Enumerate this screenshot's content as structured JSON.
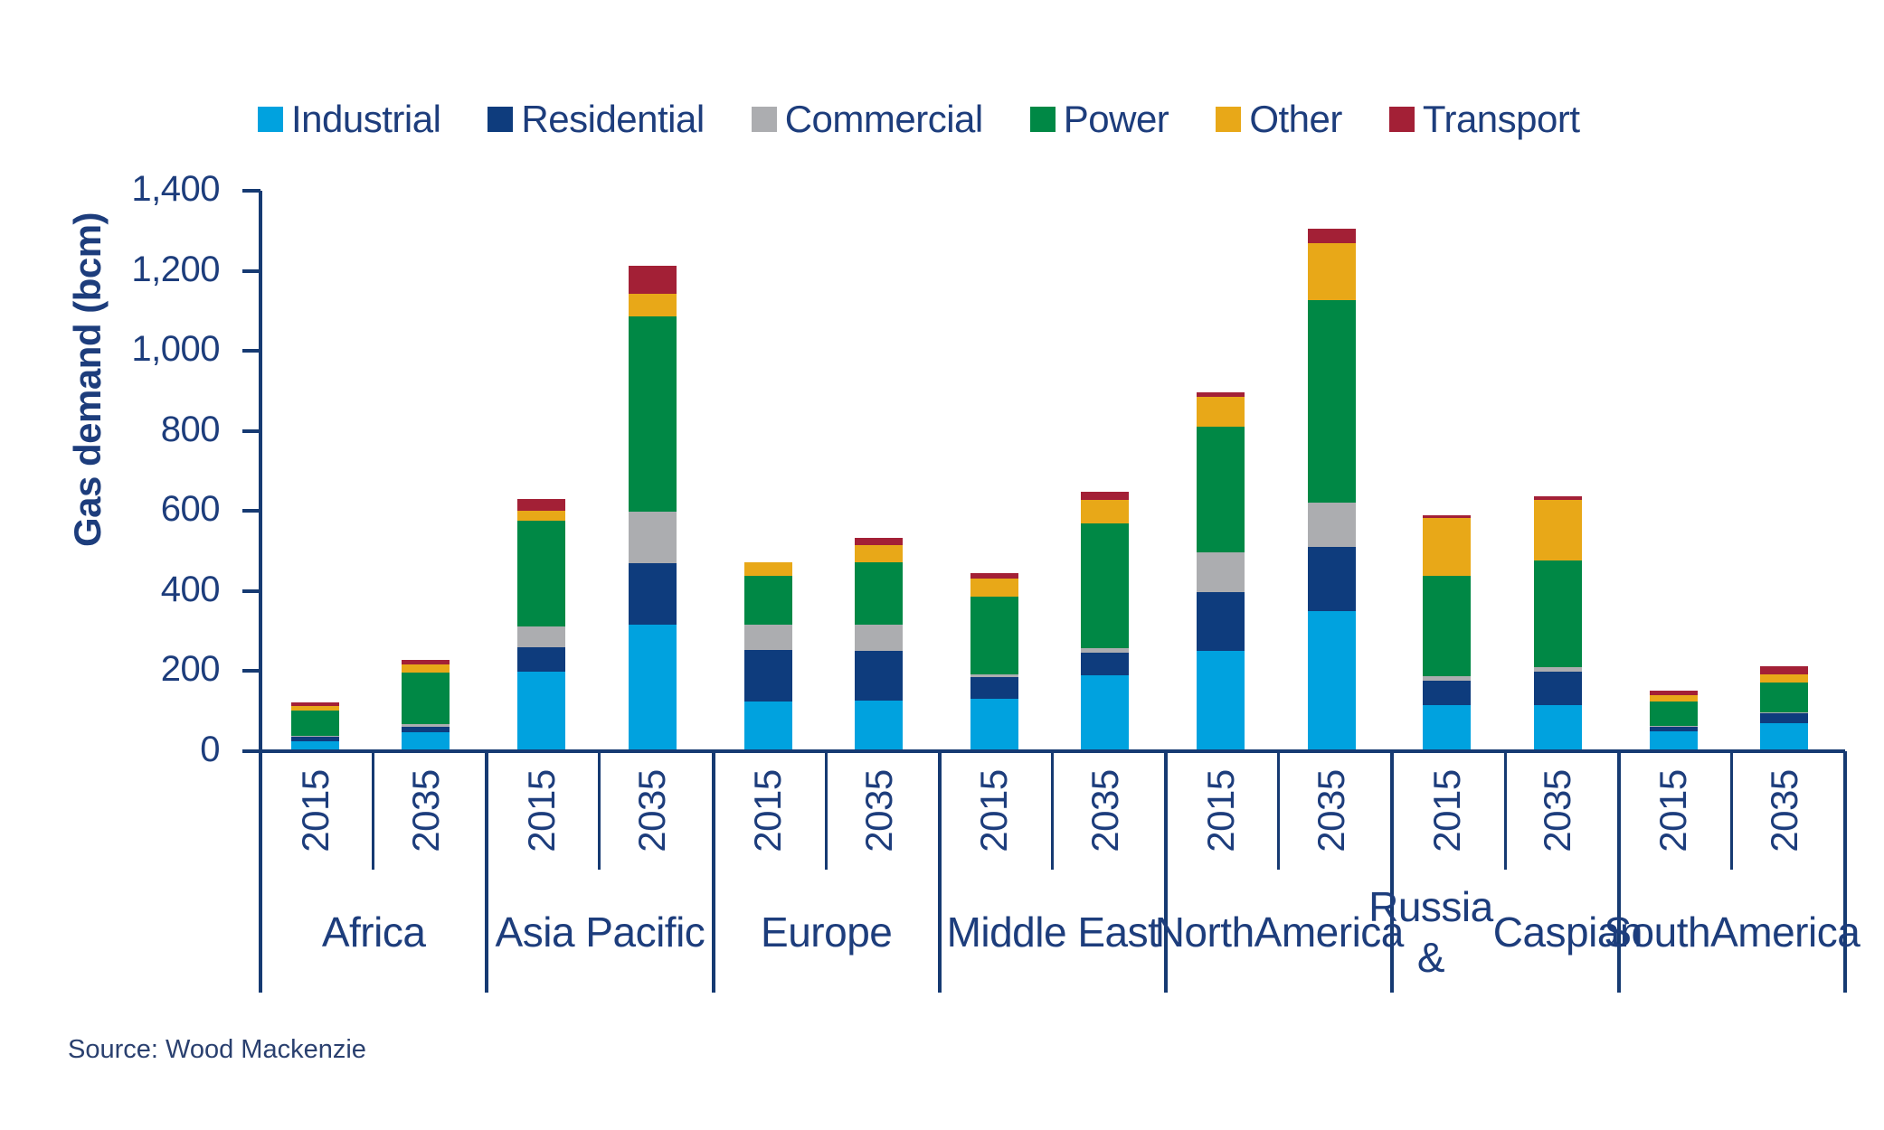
{
  "page": {
    "background": "#ffffff"
  },
  "chart_data": {
    "type": "bar",
    "stacked": true,
    "title": "",
    "ylabel": "Gas demand (bcm)",
    "xlabel": "",
    "ylim": [
      0,
      1400
    ],
    "yticks": [
      0,
      200,
      400,
      600,
      800,
      1000,
      1200,
      1400
    ],
    "ytick_labels": [
      "0",
      "200",
      "400",
      "600",
      "800",
      "1,000",
      "1,200",
      "1,400"
    ],
    "grid": false,
    "legend_position": "top",
    "series_order": [
      "Industrial",
      "Residential",
      "Commercial",
      "Power",
      "Other",
      "Transport"
    ],
    "series_colors": {
      "Industrial": "#00a2df",
      "Residential": "#0e3c7d",
      "Commercial": "#acadb0",
      "Power": "#008845",
      "Other": "#e8a818",
      "Transport": "#a32036"
    },
    "years": [
      "2015",
      "2035"
    ],
    "groups": [
      {
        "region": "Africa",
        "label_lines": [
          "Africa"
        ],
        "bars": [
          {
            "year": "2015",
            "values": {
              "Industrial": 25,
              "Residential": 10,
              "Commercial": 4,
              "Power": 62,
              "Other": 12,
              "Transport": 9
            }
          },
          {
            "year": "2035",
            "values": {
              "Industrial": 48,
              "Residential": 13,
              "Commercial": 6,
              "Power": 129,
              "Other": 21,
              "Transport": 10
            }
          }
        ]
      },
      {
        "region": "Asia Pacific",
        "label_lines": [
          "Asia Pacific"
        ],
        "bars": [
          {
            "year": "2015",
            "values": {
              "Industrial": 198,
              "Residential": 62,
              "Commercial": 52,
              "Power": 264,
              "Other": 24,
              "Transport": 29
            }
          },
          {
            "year": "2035",
            "values": {
              "Industrial": 316,
              "Residential": 153,
              "Commercial": 129,
              "Power": 489,
              "Other": 56,
              "Transport": 69
            }
          }
        ]
      },
      {
        "region": "Europe",
        "label_lines": [
          "Europe"
        ],
        "bars": [
          {
            "year": "2015",
            "values": {
              "Industrial": 125,
              "Residential": 127,
              "Commercial": 63,
              "Power": 122,
              "Other": 36,
              "Transport": 0
            }
          },
          {
            "year": "2035",
            "values": {
              "Industrial": 126,
              "Residential": 124,
              "Commercial": 65,
              "Power": 158,
              "Other": 42,
              "Transport": 19
            }
          }
        ]
      },
      {
        "region": "Middle East",
        "label_lines": [
          "Middle East"
        ],
        "bars": [
          {
            "year": "2015",
            "values": {
              "Industrial": 130,
              "Residential": 54,
              "Commercial": 8,
              "Power": 193,
              "Other": 47,
              "Transport": 13
            }
          },
          {
            "year": "2035",
            "values": {
              "Industrial": 190,
              "Residential": 55,
              "Commercial": 13,
              "Power": 311,
              "Other": 58,
              "Transport": 20
            }
          }
        ]
      },
      {
        "region": "North America",
        "label_lines": [
          "North",
          "America"
        ],
        "bars": [
          {
            "year": "2015",
            "values": {
              "Industrial": 250,
              "Residential": 148,
              "Commercial": 99,
              "Power": 314,
              "Other": 75,
              "Transport": 10
            }
          },
          {
            "year": "2035",
            "values": {
              "Industrial": 350,
              "Residential": 160,
              "Commercial": 112,
              "Power": 505,
              "Other": 143,
              "Transport": 36
            }
          }
        ]
      },
      {
        "region": "Russia & Caspian",
        "label_lines": [
          "Russia &",
          "Caspian"
        ],
        "bars": [
          {
            "year": "2015",
            "values": {
              "Industrial": 115,
              "Residential": 62,
              "Commercial": 10,
              "Power": 252,
              "Other": 143,
              "Transport": 8
            }
          },
          {
            "year": "2035",
            "values": {
              "Industrial": 116,
              "Residential": 83,
              "Commercial": 11,
              "Power": 267,
              "Other": 150,
              "Transport": 9
            }
          }
        ]
      },
      {
        "region": "South America",
        "label_lines": [
          "South",
          "America"
        ],
        "bars": [
          {
            "year": "2015",
            "values": {
              "Industrial": 49,
              "Residential": 11,
              "Commercial": 4,
              "Power": 60,
              "Other": 15,
              "Transport": 13
            }
          },
          {
            "year": "2035",
            "values": {
              "Industrial": 71,
              "Residential": 23,
              "Commercial": 4,
              "Power": 74,
              "Other": 19,
              "Transport": 21
            }
          }
        ]
      }
    ],
    "source": "Source: Wood Mackenzie",
    "text_color": "#1d3d7c",
    "axis_color": "#163a72"
  }
}
